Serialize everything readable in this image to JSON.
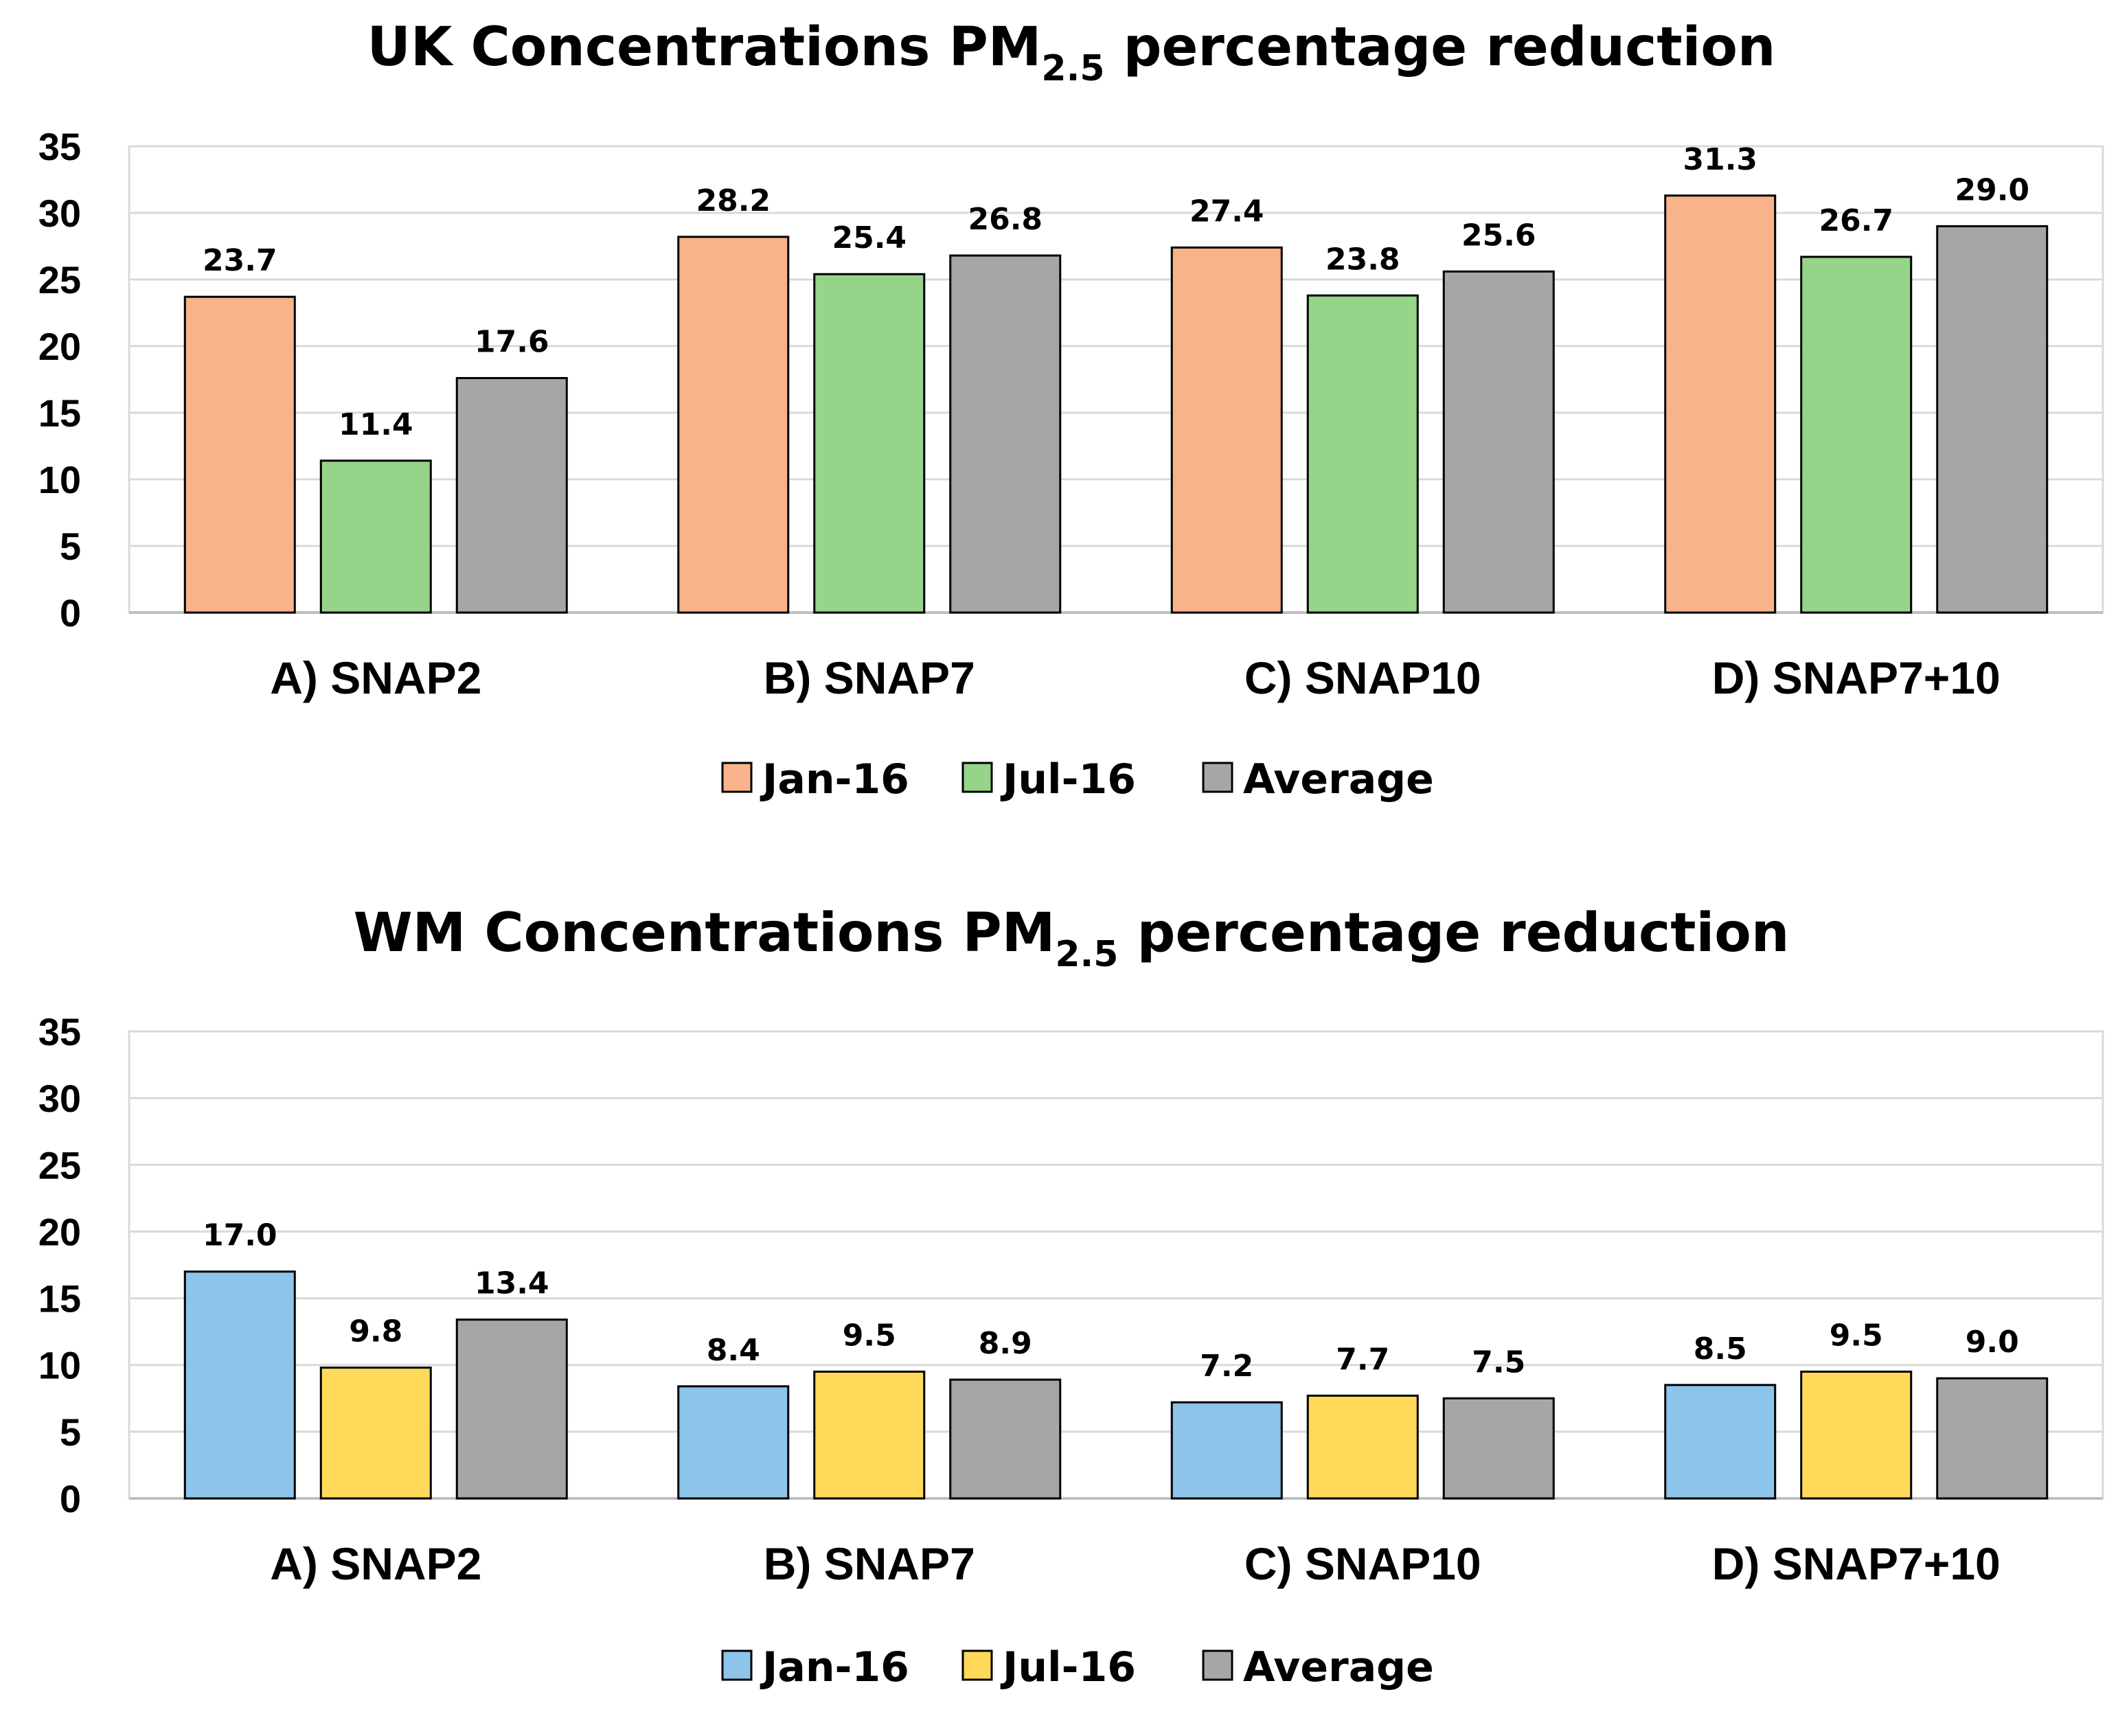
{
  "chart_data": [
    {
      "type": "bar",
      "title_prefix": "UK Concentrations PM",
      "title_subscript": "2.5",
      "title_suffix": " percentage reduction",
      "categories": [
        "A) SNAP2",
        "B) SNAP7",
        "C) SNAP10",
        "D) SNAP7+10"
      ],
      "series": [
        {
          "name": "Jan-16",
          "values": [
            23.7,
            28.2,
            27.4,
            31.3
          ],
          "color": "#F8B38A"
        },
        {
          "name": "Jul-16",
          "values": [
            11.4,
            25.4,
            23.8,
            26.7
          ],
          "color": "#96D48A"
        },
        {
          "name": "Average",
          "values": [
            17.6,
            26.8,
            25.6,
            29.0
          ],
          "color": "#A6A6A6"
        }
      ],
      "ylim": [
        0,
        35
      ],
      "yticks": [
        "0",
        "5",
        "10",
        "15",
        "20",
        "25",
        "30",
        "35"
      ],
      "grid": true,
      "legend_position": "bottom",
      "xlabel": "",
      "ylabel": ""
    },
    {
      "type": "bar",
      "title_prefix": "WM Concentrations PM",
      "title_subscript": "2.5",
      "title_suffix": " percentage reduction",
      "categories": [
        "A) SNAP2",
        "B) SNAP7",
        "C) SNAP10",
        "D) SNAP7+10"
      ],
      "series": [
        {
          "name": "Jan-16",
          "values": [
            17.0,
            8.4,
            7.2,
            8.5
          ],
          "color": "#8CC4EA"
        },
        {
          "name": "Jul-16",
          "values": [
            9.8,
            9.5,
            7.7,
            9.5
          ],
          "color": "#FFD95A"
        },
        {
          "name": "Average",
          "values": [
            13.4,
            8.9,
            7.5,
            9.0
          ],
          "color": "#A6A6A6"
        }
      ],
      "ylim": [
        0,
        35
      ],
      "yticks": [
        "0",
        "5",
        "10",
        "15",
        "20",
        "25",
        "30",
        "35"
      ],
      "grid": true,
      "legend_position": "bottom",
      "xlabel": "",
      "ylabel": ""
    }
  ]
}
